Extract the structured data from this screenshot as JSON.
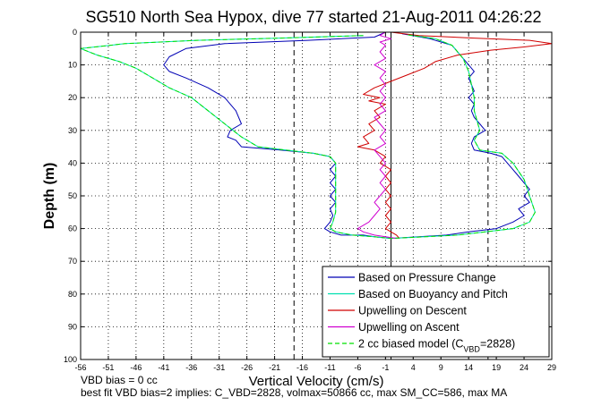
{
  "chart_data": {
    "type": "line",
    "title": "SG510 North Sea Hypox, dive 77 started 21-Aug-2011 04:26:22",
    "xlabel": "Vertical Velocity (cm/s)",
    "ylabel": "Depth (m)",
    "xlim": [
      -56,
      29
    ],
    "ylim": [
      0,
      100
    ],
    "y_reversed": true,
    "grid": true,
    "legend_position": "bottom-right",
    "x_ticks": [
      -56,
      -51,
      -46,
      -41,
      -36,
      -31,
      -26,
      -21,
      -16,
      -11,
      -6,
      -1,
      4,
      9,
      14,
      19,
      24,
      29
    ],
    "y_ticks": [
      0,
      10,
      20,
      30,
      40,
      50,
      60,
      70,
      80,
      90,
      100
    ],
    "reference_lines": [
      {
        "x": -17.5,
        "style": "dashed"
      },
      {
        "x": 17.5,
        "style": "dashed"
      },
      {
        "x": 0,
        "style": "solid"
      }
    ],
    "series": [
      {
        "name": "Based on Pressure Change",
        "color": "#0000b4",
        "style": "solid",
        "points": [
          [
            -1,
            0
          ],
          [
            -3,
            1.5
          ],
          [
            -15,
            2.5
          ],
          [
            -30,
            3.5
          ],
          [
            -37,
            5
          ],
          [
            -40,
            7.5
          ],
          [
            -41,
            10
          ],
          [
            -40,
            12
          ],
          [
            -37,
            14
          ],
          [
            -33,
            17
          ],
          [
            -30,
            20
          ],
          [
            -28,
            24
          ],
          [
            -27,
            28
          ],
          [
            -29,
            30
          ],
          [
            -29.5,
            32
          ],
          [
            -28,
            33
          ],
          [
            -27,
            35
          ],
          [
            -20,
            36
          ],
          [
            -14,
            37
          ],
          [
            -11,
            38
          ],
          [
            -10,
            40
          ],
          [
            -11,
            42
          ],
          [
            -10,
            44
          ],
          [
            -11,
            46
          ],
          [
            -10,
            48
          ],
          [
            -11,
            50
          ],
          [
            -10,
            52
          ],
          [
            -11,
            54
          ],
          [
            -10.5,
            56
          ],
          [
            -11,
            58
          ],
          [
            -12,
            60
          ],
          [
            -11,
            61
          ],
          [
            -9,
            62
          ],
          [
            -5,
            62
          ],
          [
            -3,
            62.5
          ],
          [
            0,
            63
          ],
          [
            5,
            62.5
          ],
          [
            10,
            62
          ],
          [
            14,
            61
          ],
          [
            19,
            60
          ],
          [
            22,
            58
          ],
          [
            24,
            56
          ],
          [
            23,
            54
          ],
          [
            25,
            52
          ],
          [
            24,
            50
          ],
          [
            25,
            48
          ],
          [
            24,
            46
          ],
          [
            23,
            44
          ],
          [
            22,
            42
          ],
          [
            21,
            40
          ],
          [
            20,
            38
          ],
          [
            18,
            37
          ],
          [
            15,
            36
          ],
          [
            14.5,
            34
          ],
          [
            15,
            32
          ],
          [
            17,
            30
          ],
          [
            16,
            28
          ],
          [
            15,
            26
          ],
          [
            14.5,
            24
          ],
          [
            15,
            22
          ],
          [
            14,
            20
          ],
          [
            15,
            18
          ],
          [
            14.5,
            16
          ],
          [
            14,
            14
          ],
          [
            15,
            12
          ],
          [
            14,
            10
          ],
          [
            13,
            8
          ],
          [
            12,
            6
          ],
          [
            11,
            4
          ],
          [
            7,
            2
          ],
          [
            2,
            0.5
          ]
        ]
      },
      {
        "name": "Based on Buoyancy and Pitch",
        "color": "#00e0b0",
        "style": "solid",
        "points": [
          [
            -5,
            1
          ],
          [
            -20,
            1.8
          ],
          [
            -35,
            2.5
          ],
          [
            -48,
            3.5
          ],
          [
            -56,
            5
          ],
          [
            -53,
            7
          ],
          [
            -49,
            9
          ],
          [
            -46,
            11
          ],
          [
            -43,
            14
          ],
          [
            -40,
            17
          ],
          [
            -36,
            20
          ],
          [
            -33,
            24
          ],
          [
            -30,
            28
          ],
          [
            -27,
            32
          ],
          [
            -24,
            35
          ],
          [
            -19,
            36
          ],
          [
            -14,
            37
          ],
          [
            -11,
            38
          ],
          [
            -10,
            40
          ],
          [
            -10,
            45
          ],
          [
            -10,
            50
          ],
          [
            -10,
            55
          ],
          [
            -10.5,
            58
          ],
          [
            -11,
            60
          ],
          [
            -10,
            61
          ],
          [
            -7,
            62
          ],
          [
            -3,
            62.5
          ],
          [
            0,
            63
          ],
          [
            6,
            62.5
          ],
          [
            12,
            62
          ],
          [
            17,
            61
          ],
          [
            22,
            60
          ],
          [
            25,
            58
          ],
          [
            26,
            55
          ],
          [
            25,
            50
          ],
          [
            24,
            45
          ],
          [
            22,
            40
          ],
          [
            20,
            37
          ],
          [
            16,
            36
          ],
          [
            15,
            33
          ],
          [
            16,
            30
          ],
          [
            15.5,
            27
          ],
          [
            15,
            24
          ],
          [
            15,
            20
          ],
          [
            14.5,
            16
          ],
          [
            14,
            12
          ],
          [
            13,
            8
          ],
          [
            11,
            4
          ],
          [
            8,
            2
          ],
          [
            3,
            0.8
          ]
        ]
      },
      {
        "name": "Upwelling on Descent",
        "color": "#d00000",
        "style": "solid",
        "points": [
          [
            0,
            0
          ],
          [
            5,
            1
          ],
          [
            15,
            1.8
          ],
          [
            25,
            2.5
          ],
          [
            29,
            3.5
          ],
          [
            24,
            4.5
          ],
          [
            18,
            5.5
          ],
          [
            12,
            7
          ],
          [
            8,
            9
          ],
          [
            6,
            11
          ],
          [
            3,
            13
          ],
          [
            0,
            15
          ],
          [
            -3,
            17
          ],
          [
            -5,
            19
          ],
          [
            -2,
            20
          ],
          [
            -4,
            21
          ],
          [
            -1,
            22
          ],
          [
            -3,
            24
          ],
          [
            -2,
            26
          ],
          [
            -4,
            28
          ],
          [
            -3,
            30
          ],
          [
            -5,
            32
          ],
          [
            -4,
            34
          ],
          [
            -6,
            35
          ],
          [
            -3,
            36
          ],
          [
            -1,
            38
          ],
          [
            -2,
            40
          ],
          [
            0,
            42
          ],
          [
            -1,
            44
          ],
          [
            0,
            46
          ],
          [
            -1,
            48
          ],
          [
            0,
            50
          ],
          [
            -1,
            52
          ],
          [
            0,
            54
          ],
          [
            -1,
            56
          ],
          [
            0,
            58
          ],
          [
            -1,
            60
          ],
          [
            0,
            61
          ],
          [
            1,
            62
          ],
          [
            1.5,
            63
          ]
        ]
      },
      {
        "name": "Upwelling on Ascent",
        "color": "#d000d0",
        "style": "solid",
        "points": [
          [
            -1,
            0
          ],
          [
            -2,
            1
          ],
          [
            0,
            2
          ],
          [
            -2,
            3
          ],
          [
            -1,
            4
          ],
          [
            -2,
            6
          ],
          [
            -1,
            8
          ],
          [
            -3,
            10
          ],
          [
            -1,
            12
          ],
          [
            -2,
            14
          ],
          [
            -1,
            16
          ],
          [
            -2,
            18
          ],
          [
            -1,
            20
          ],
          [
            -2,
            22
          ],
          [
            -1,
            24
          ],
          [
            -3,
            26
          ],
          [
            -2,
            28
          ],
          [
            -1,
            30
          ],
          [
            -2,
            32
          ],
          [
            -1,
            34
          ],
          [
            -3,
            36
          ],
          [
            -2,
            38
          ],
          [
            -1,
            40
          ],
          [
            -2,
            42
          ],
          [
            -1,
            44
          ],
          [
            -2,
            46
          ],
          [
            -1,
            48
          ],
          [
            -2,
            50
          ],
          [
            -3,
            52
          ],
          [
            -2,
            54
          ],
          [
            -3,
            56
          ],
          [
            -4,
            58
          ],
          [
            -6,
            60
          ],
          [
            -5,
            61
          ],
          [
            -3,
            62
          ],
          [
            -1,
            62.5
          ],
          [
            1,
            63
          ]
        ]
      },
      {
        "name": "2 cc biased model (C_VBD=2828)",
        "color": "#00e000",
        "style": "dashed",
        "points": [
          [
            -5,
            1
          ],
          [
            -20,
            1.8
          ],
          [
            -35,
            2.5
          ],
          [
            -48,
            3.5
          ],
          [
            -56,
            5
          ],
          [
            -53,
            7
          ],
          [
            -49,
            9
          ],
          [
            -46,
            11
          ],
          [
            -43,
            14
          ],
          [
            -40,
            17
          ],
          [
            -36,
            20
          ],
          [
            -33,
            24
          ],
          [
            -30,
            28
          ],
          [
            -27,
            32
          ],
          [
            -24,
            35
          ],
          [
            -19,
            36
          ],
          [
            -14,
            37
          ],
          [
            -11,
            38
          ],
          [
            -10,
            40
          ],
          [
            -10,
            45
          ],
          [
            -10,
            50
          ],
          [
            -10,
            55
          ],
          [
            -10.5,
            58
          ],
          [
            -11,
            60
          ],
          [
            -10,
            61
          ],
          [
            -7,
            62
          ],
          [
            -3,
            62.5
          ],
          [
            0,
            63
          ],
          [
            6,
            62.5
          ],
          [
            12,
            62
          ],
          [
            17,
            61
          ],
          [
            22,
            60
          ],
          [
            25,
            58
          ],
          [
            26,
            55
          ],
          [
            25,
            50
          ],
          [
            24,
            45
          ],
          [
            22,
            40
          ],
          [
            20,
            37
          ],
          [
            16,
            36
          ],
          [
            15,
            33
          ],
          [
            16,
            30
          ],
          [
            15.5,
            27
          ],
          [
            15,
            24
          ],
          [
            15,
            20
          ],
          [
            14.5,
            16
          ],
          [
            14,
            12
          ],
          [
            13,
            8
          ],
          [
            11,
            4
          ],
          [
            8,
            2
          ],
          [
            3,
            0.8
          ]
        ]
      }
    ],
    "legend_last_label_parts": {
      "main": "2 cc biased model (C",
      "sub": "VBD",
      "tail": "=2828)"
    }
  },
  "footer": {
    "line1": "VBD bias = 0 cc",
    "line2": "best fit VBD bias=2 implies: C_VBD=2828, volmax=50866 cc, max SM_CC=586, max MA"
  }
}
